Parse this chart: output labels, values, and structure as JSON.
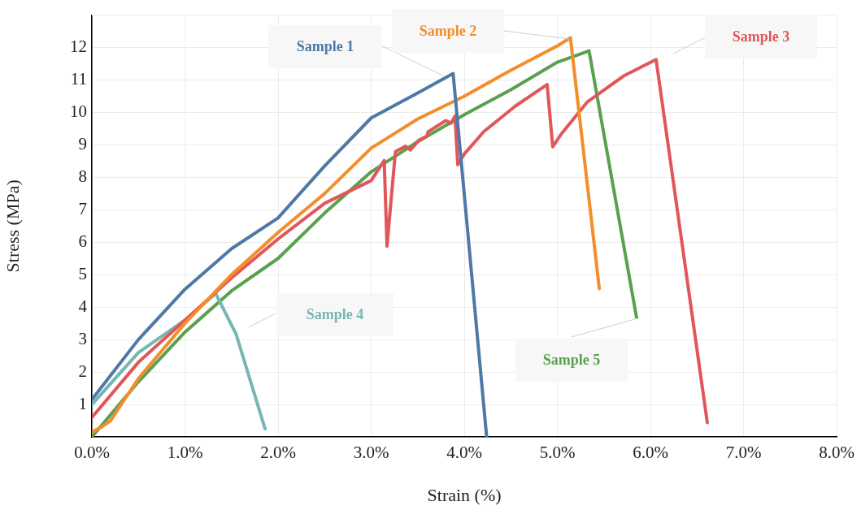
{
  "chart_data": {
    "type": "line",
    "xlabel": "Strain (%)",
    "ylabel": "Stress (MPa)",
    "xlim": [
      0,
      8
    ],
    "xticks": [
      {
        "value": 0,
        "label": "0.0%"
      },
      {
        "value": 1,
        "label": "1.0%"
      },
      {
        "value": 2,
        "label": "2.0%"
      },
      {
        "value": 3,
        "label": "3.0%"
      },
      {
        "value": 4,
        "label": "4.0%"
      },
      {
        "value": 5,
        "label": "5.0%"
      },
      {
        "value": 6,
        "label": "6.0%"
      },
      {
        "value": 7,
        "label": "7.0%"
      },
      {
        "value": 8,
        "label": "8.0%"
      }
    ],
    "ylim": [
      0,
      13
    ],
    "yticks": [
      1,
      2,
      3,
      4,
      5,
      6,
      7,
      8,
      9,
      10,
      11,
      12
    ],
    "grid": true,
    "legend": false,
    "marker": "none",
    "line_style": "solid",
    "series": [
      {
        "name": "Sample 1",
        "color": "#4e79a7",
        "x": [
          0,
          0.5,
          1.0,
          1.5,
          2.0,
          2.5,
          3.0,
          3.5,
          3.88,
          4.24
        ],
        "values": [
          1.15,
          3.0,
          4.55,
          5.8,
          6.75,
          8.35,
          9.83,
          10.6,
          11.2,
          0
        ]
      },
      {
        "name": "Sample 2",
        "color": "#f28e2b",
        "x": [
          0,
          0.1,
          0.2,
          0.5,
          1.0,
          1.5,
          2.0,
          2.5,
          3.0,
          3.5,
          4.0,
          4.5,
          5.0,
          5.14,
          5.45
        ],
        "values": [
          0.15,
          0.3,
          0.5,
          1.8,
          3.5,
          5.0,
          6.3,
          7.5,
          8.9,
          9.8,
          10.5,
          11.3,
          12.05,
          12.3,
          4.57
        ]
      },
      {
        "name": "Sample 3",
        "color": "#e15759",
        "x": [
          0,
          0.5,
          1.0,
          1.5,
          2.0,
          2.5,
          3.0,
          3.14,
          3.17,
          3.26,
          3.37,
          3.42,
          3.51,
          3.6,
          3.61,
          3.8,
          3.86,
          3.9,
          3.93,
          4.0,
          4.21,
          4.55,
          4.89,
          4.95,
          5.04,
          5.32,
          5.72,
          6.06,
          6.61
        ],
        "values": [
          0.6,
          2.3,
          3.6,
          4.9,
          6.1,
          7.2,
          7.9,
          8.52,
          5.88,
          8.79,
          8.96,
          8.84,
          9.14,
          9.27,
          9.4,
          9.75,
          9.67,
          9.89,
          8.39,
          8.72,
          9.41,
          10.2,
          10.86,
          8.94,
          9.33,
          10.32,
          11.14,
          11.63,
          0.44
        ]
      },
      {
        "name": "Sample 4",
        "color": "#76b7b2",
        "x": [
          0,
          0.5,
          1.0,
          1.33,
          1.55,
          1.86
        ],
        "values": [
          1.0,
          2.6,
          3.6,
          4.42,
          3.16,
          0.25
        ]
      },
      {
        "name": "Sample 5",
        "color": "#59a14f",
        "x": [
          0,
          0.5,
          1.0,
          1.5,
          2.0,
          2.5,
          3.0,
          3.5,
          4.0,
          4.5,
          5.0,
          5.34,
          5.85
        ],
        "values": [
          0,
          1.7,
          3.23,
          4.5,
          5.5,
          6.9,
          8.17,
          9.1,
          9.93,
          10.7,
          11.55,
          11.9,
          3.68
        ]
      }
    ]
  }
}
